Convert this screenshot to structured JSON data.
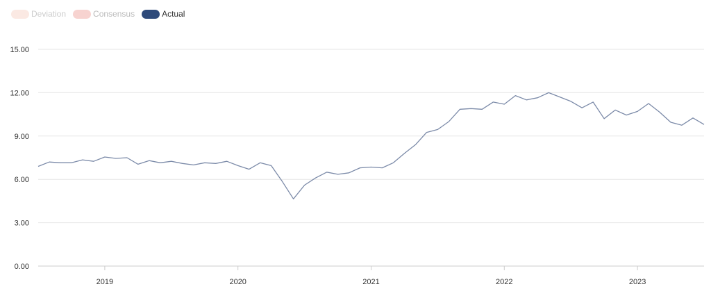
{
  "legend": {
    "items": [
      {
        "label": "Deviation",
        "color": "#fbe9e3",
        "text_color": "#cccccc"
      },
      {
        "label": "Consensus",
        "color": "#f7d3d0",
        "text_color": "#bbbbbb"
      },
      {
        "label": "Actual",
        "color": "#2e4a7a",
        "text_color": "#333333"
      }
    ]
  },
  "colors": {
    "line": "#7b8aa8",
    "grid": "#e6e6e6",
    "axis": "#cccccc"
  },
  "chart_data": {
    "type": "line",
    "title": "",
    "xlabel": "",
    "ylabel": "",
    "ylim": [
      0,
      15
    ],
    "y_ticks": [
      "15.00",
      "12.00",
      "9.00",
      "6.00",
      "3.00",
      "0.00"
    ],
    "y_tick_values": [
      15,
      12,
      9,
      6,
      3,
      0
    ],
    "x_ticks": [
      "2019",
      "2020",
      "2021",
      "2022",
      "2023"
    ],
    "x_tick_dates": [
      "2019-01",
      "2020-01",
      "2021-01",
      "2022-01",
      "2023-01"
    ],
    "x_range": [
      "2018-07",
      "2023-07"
    ],
    "grid": "horizontal",
    "legend_position": "top-left",
    "series": [
      {
        "name": "Actual",
        "x": [
          "2018-07",
          "2018-08",
          "2018-09",
          "2018-10",
          "2018-11",
          "2018-12",
          "2019-01",
          "2019-02",
          "2019-03",
          "2019-04",
          "2019-05",
          "2019-06",
          "2019-07",
          "2019-08",
          "2019-09",
          "2019-10",
          "2019-11",
          "2019-12",
          "2020-01",
          "2020-02",
          "2020-03",
          "2020-04",
          "2020-05",
          "2020-06",
          "2020-07",
          "2020-08",
          "2020-09",
          "2020-10",
          "2020-11",
          "2020-12",
          "2021-01",
          "2021-02",
          "2021-03",
          "2021-04",
          "2021-05",
          "2021-06",
          "2021-07",
          "2021-08",
          "2021-09",
          "2021-10",
          "2021-11",
          "2021-12",
          "2022-01",
          "2022-02",
          "2022-03",
          "2022-04",
          "2022-05",
          "2022-06",
          "2022-07",
          "2022-08",
          "2022-09",
          "2022-10",
          "2022-11",
          "2022-12",
          "2023-01",
          "2023-02",
          "2023-03",
          "2023-04",
          "2023-05",
          "2023-06",
          "2023-07"
        ],
        "values": [
          6.9,
          7.2,
          7.15,
          7.15,
          7.35,
          7.25,
          7.55,
          7.45,
          7.5,
          7.05,
          7.3,
          7.15,
          7.25,
          7.1,
          7.0,
          7.15,
          7.1,
          7.25,
          6.95,
          6.7,
          7.15,
          6.95,
          5.85,
          4.65,
          5.6,
          6.1,
          6.5,
          6.35,
          6.45,
          6.8,
          6.85,
          6.8,
          7.15,
          7.8,
          8.4,
          9.25,
          9.45,
          10.0,
          10.85,
          10.9,
          10.85,
          11.35,
          11.2,
          11.8,
          11.5,
          11.65,
          12.0,
          11.7,
          11.4,
          10.95,
          11.35,
          10.2,
          10.8,
          10.45,
          10.7,
          11.25,
          10.65,
          9.95,
          9.75,
          10.25,
          9.8
        ]
      }
    ]
  }
}
